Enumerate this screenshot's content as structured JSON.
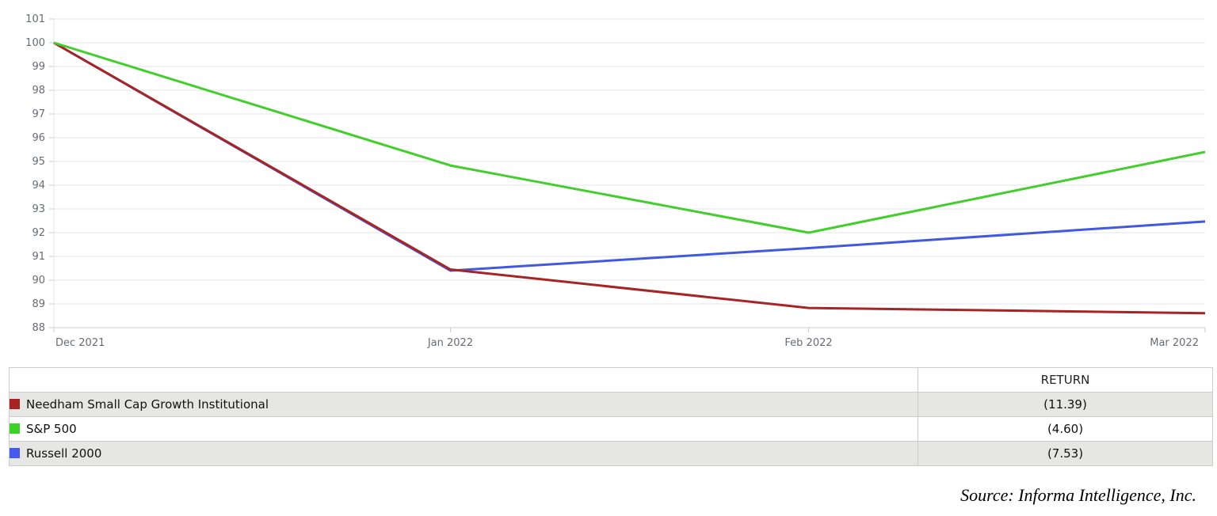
{
  "chart_data": {
    "type": "line",
    "title": "",
    "xlabel": "",
    "ylabel": "",
    "grid": true,
    "legend_position": "table-below",
    "y_axis": {
      "min": 88,
      "max": 101,
      "step": 1
    },
    "x_labels": [
      {
        "label": "Dec 2021",
        "frac": 0.0,
        "align": "start"
      },
      {
        "label": "Jan 2022",
        "frac": 0.34444,
        "align": "middle"
      },
      {
        "label": "Feb 2022",
        "frac": 0.65556,
        "align": "middle"
      },
      {
        "label": "Mar 2022",
        "frac": 1.0,
        "align": "end"
      }
    ],
    "series": [
      {
        "name": "Russell 2000",
        "color": "#4159E1",
        "values": [
          100,
          90.4,
          91.35,
          92.47
        ]
      },
      {
        "name": "Needham Small Cap Growth Institutional",
        "color": "#A82424",
        "values": [
          100,
          90.45,
          88.83,
          88.61
        ]
      },
      {
        "name": "S&P 500",
        "color": "#44CE2E",
        "values": [
          100,
          94.83,
          92.0,
          95.4
        ]
      }
    ],
    "colors": {
      "gridline": "#e2e4e7",
      "axis": "#c9cdd2",
      "axis_text": "#666c73"
    }
  },
  "table": {
    "return_header": "RETURN",
    "rows": [
      {
        "name": "Needham Small Cap Growth Institutional",
        "swatch_color": "#A82424",
        "return": "(11.39)"
      },
      {
        "name": "S&P 500",
        "swatch_color": "#3CD228",
        "return": "(4.60)"
      },
      {
        "name": "Russell 2000",
        "swatch_color": "#465AEB",
        "return": "(7.53)"
      }
    ]
  },
  "source_text": "Source: Informa Intelligence, Inc."
}
